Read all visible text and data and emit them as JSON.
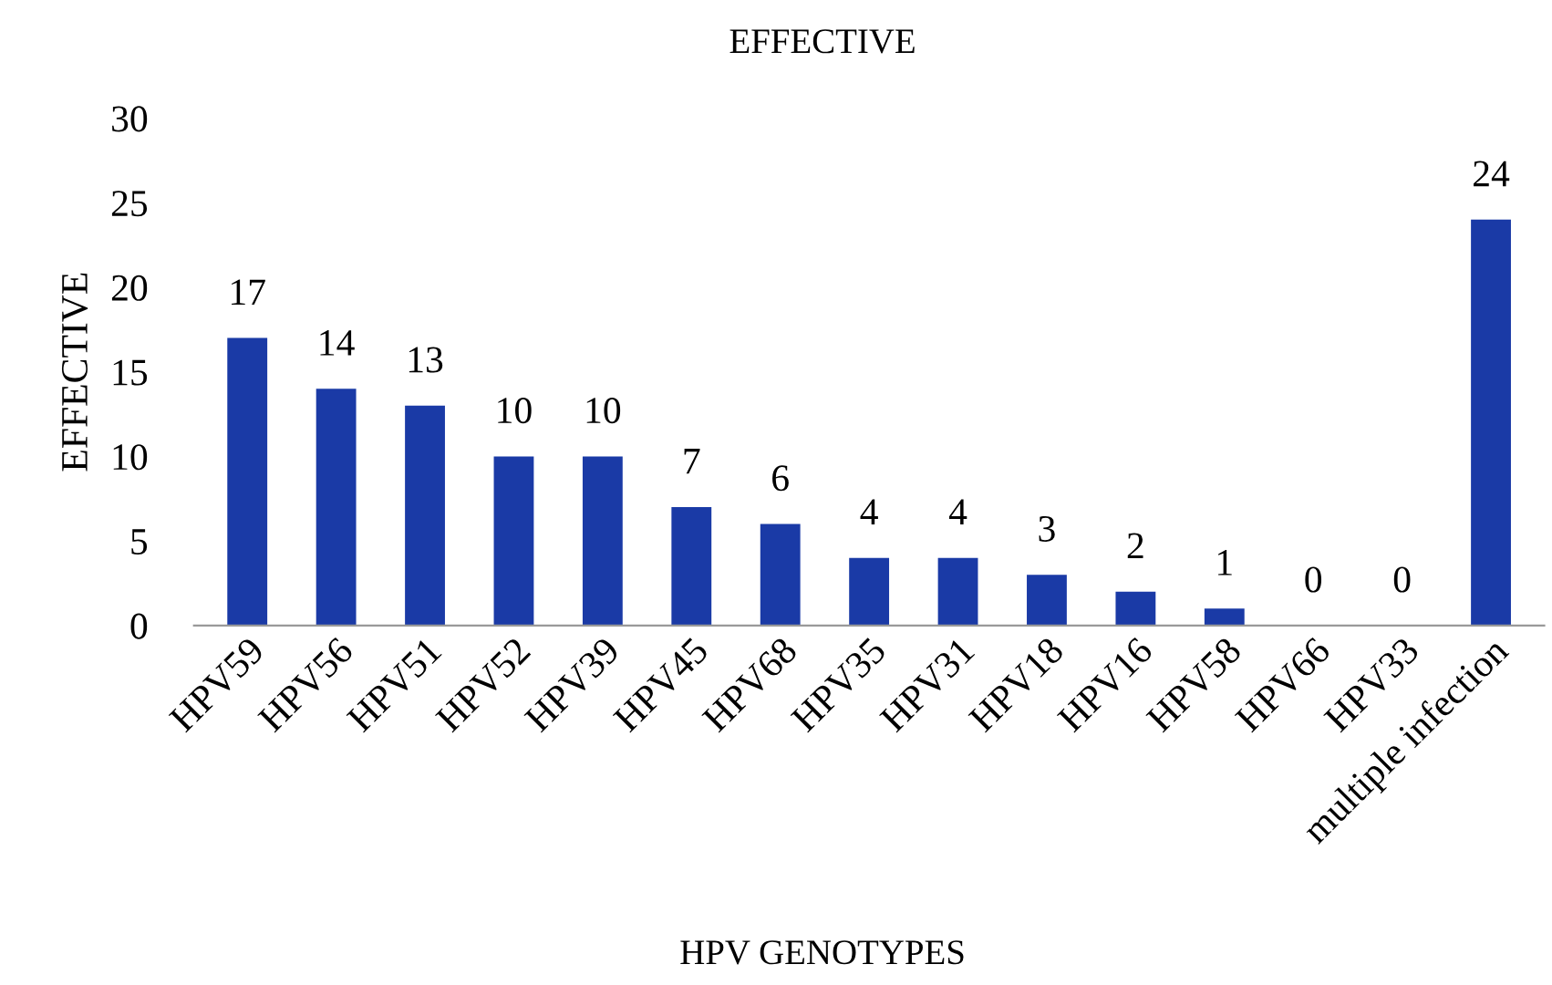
{
  "chart_data": {
    "type": "bar",
    "title": "EFFECTIVE",
    "xlabel": "HPV GENOTYPES",
    "ylabel": "EFFECTIVE",
    "categories": [
      "HPV59",
      "HPV56",
      "HPV51",
      "HPV52",
      "HPV39",
      "HPV45",
      "HPV68",
      "HPV35",
      "HPV31",
      "HPV18",
      "HPV16",
      "HPV58",
      "HPV66",
      "HPV33",
      "multiple infection"
    ],
    "values": [
      17,
      14,
      13,
      10,
      10,
      7,
      6,
      4,
      4,
      3,
      2,
      1,
      0,
      0,
      24
    ],
    "color": "#1a3aa6",
    "ylim": [
      0,
      30
    ],
    "yticks": [
      0,
      5,
      10,
      15,
      20,
      25,
      30
    ],
    "data_labels": true,
    "grid": false,
    "legend": false
  }
}
